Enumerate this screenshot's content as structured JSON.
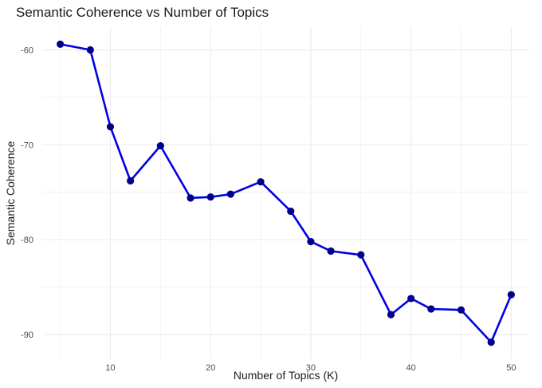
{
  "chart_data": {
    "type": "line",
    "title": "Semantic Coherence vs Number of Topics",
    "xlabel": "Number of Topics (K)",
    "ylabel": "Semantic Coherence",
    "x": [
      5,
      8,
      10,
      12,
      15,
      18,
      20,
      22,
      25,
      28,
      30,
      32,
      35,
      38,
      40,
      42,
      45,
      48,
      50
    ],
    "series": [
      {
        "values": [
          -59.4,
          -60.0,
          -68.1,
          -73.8,
          -70.1,
          -75.6,
          -75.5,
          -75.2,
          -73.9,
          -77.0,
          -80.2,
          -81.2,
          -81.6,
          -87.9,
          -86.2,
          -87.3,
          -87.4,
          -90.8,
          -85.8
        ]
      }
    ],
    "xticks": [
      "10",
      "20",
      "30",
      "40",
      "50"
    ],
    "yticks": [
      "-60",
      "-70",
      "-80",
      "-90"
    ],
    "xlim": [
      3.2,
      51.8
    ],
    "ylim": [
      -92.6,
      -57.6
    ],
    "grid": true,
    "line_color": "#0000e6",
    "point_color": "#00008b",
    "grid_color": "#ebebeb"
  }
}
